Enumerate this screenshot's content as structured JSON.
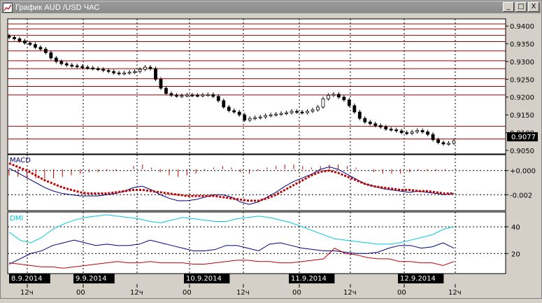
{
  "window": {
    "title": "График AUD /USD  ЧАС",
    "buttons": [
      "_",
      "□",
      "X"
    ]
  },
  "icons": {
    "app": "chart-icon",
    "minimize": "minimize-icon",
    "maximize": "maximize-icon",
    "close": "close-icon"
  },
  "chart_data": [
    {
      "type": "candlestick",
      "y_ticks": [
        "0.9400",
        "0.9350",
        "0.9300",
        "0.9250",
        "0.9200",
        "0.9150",
        "0.9100",
        "0.9050"
      ],
      "ylim": [
        0.904,
        0.942
      ],
      "current_price": "0.9077",
      "horizontal_levels": [
        0.9406,
        0.9392,
        0.9374,
        0.9356,
        0.933,
        0.9302,
        0.928,
        0.9252,
        0.923,
        0.9206,
        0.9118,
        0.9082
      ],
      "close_series": [
        0.9368,
        0.9364,
        0.9358,
        0.9352,
        0.9348,
        0.934,
        0.9335,
        0.9325,
        0.931,
        0.93,
        0.9294,
        0.929,
        0.9288,
        0.9286,
        0.9284,
        0.9282,
        0.928,
        0.9278,
        0.9275,
        0.9272,
        0.9268,
        0.9266,
        0.9268,
        0.927,
        0.9272,
        0.9278,
        0.9284,
        0.928,
        0.925,
        0.9225,
        0.921,
        0.9205,
        0.9203,
        0.9204,
        0.9206,
        0.9205,
        0.9204,
        0.9206,
        0.9207,
        0.9202,
        0.919,
        0.9172,
        0.9162,
        0.9158,
        0.915,
        0.9135,
        0.914,
        0.9142,
        0.9144,
        0.9148,
        0.915,
        0.9152,
        0.9154,
        0.9156,
        0.916,
        0.9158,
        0.9156,
        0.916,
        0.9164,
        0.9172,
        0.9195,
        0.9205,
        0.9208,
        0.92,
        0.9192,
        0.9176,
        0.9158,
        0.914,
        0.913,
        0.9125,
        0.912,
        0.9116,
        0.911,
        0.9108,
        0.9105,
        0.91,
        0.9098,
        0.9102,
        0.9106,
        0.9102,
        0.9095,
        0.908,
        0.9072,
        0.9068,
        0.907,
        0.9077
      ]
    },
    {
      "type": "line",
      "label": "MACD",
      "y_ticks": [
        "+0.000",
        "-0.002"
      ],
      "ylim": [
        -0.0032,
        0.0012
      ],
      "macd": [
        0.0002,
        -0.0002,
        -0.0006,
        -0.001,
        -0.0014,
        -0.0017,
        -0.0019,
        -0.002,
        -0.0021,
        -0.0021,
        -0.0021,
        -0.002,
        -0.0019,
        -0.0017,
        -0.0014,
        -0.0013,
        -0.0016,
        -0.002,
        -0.0023,
        -0.0025,
        -0.0025,
        -0.0024,
        -0.0022,
        -0.002,
        -0.002,
        -0.0022,
        -0.0026,
        -0.0028,
        -0.0026,
        -0.0022,
        -0.0018,
        -0.0013,
        -0.0009,
        -0.0006,
        -0.0003,
        0.0001,
        0.0003,
        0.0001,
        -0.0003,
        -0.0007,
        -0.0011,
        -0.0013,
        -0.0015,
        -0.0016,
        -0.0017,
        -0.0018,
        -0.0017,
        -0.0018,
        -0.0019,
        -0.002,
        -0.0019
      ],
      "signal": [
        0.0006,
        0.0003,
        0.0,
        -0.0004,
        -0.0008,
        -0.0011,
        -0.0014,
        -0.0016,
        -0.0018,
        -0.0019,
        -0.0019,
        -0.0019,
        -0.0018,
        -0.0017,
        -0.0016,
        -0.0016,
        -0.0017,
        -0.0018,
        -0.0019,
        -0.002,
        -0.0021,
        -0.0021,
        -0.0021,
        -0.0021,
        -0.0022,
        -0.0023,
        -0.0024,
        -0.0025,
        -0.0025,
        -0.0023,
        -0.002,
        -0.0016,
        -0.0012,
        -0.0008,
        -0.0004,
        -0.0001,
        0.0,
        -0.0002,
        -0.0005,
        -0.0008,
        -0.0011,
        -0.0013,
        -0.0014,
        -0.0015,
        -0.0016,
        -0.0016,
        -0.0017,
        -0.0017,
        -0.0018,
        -0.0019,
        -0.0019
      ],
      "histogram": [
        -0.0004,
        -0.0005,
        -0.0006,
        -0.0006,
        -0.0006,
        -0.0006,
        -0.0005,
        -0.0004,
        -0.0003,
        -0.0002,
        -0.0002,
        -0.0001,
        -0.0001,
        0.0,
        0.0002,
        0.0003,
        0.0001,
        -0.0002,
        -0.0004,
        -0.0005,
        -0.0004,
        -0.0003,
        -0.0001,
        0.0001,
        0.0002,
        0.0001,
        -0.0002,
        -0.0003,
        -0.0001,
        0.0001,
        0.0002,
        0.0003,
        0.0003,
        0.0002,
        0.0001,
        0.0002,
        0.0003,
        0.0003,
        0.0002,
        0.0001,
        0.0,
        -0.0002,
        -0.0003,
        -0.0003,
        -0.0003,
        -0.0002,
        -0.0001,
        -0.0001,
        -0.0001,
        -0.0001,
        0.0
      ]
    },
    {
      "type": "line",
      "label": "DMI",
      "y_ticks": [
        "40",
        "20"
      ],
      "ylim": [
        6,
        50
      ],
      "adx": [
        36,
        30,
        28,
        32,
        38,
        42,
        45,
        47,
        48,
        49,
        48,
        47,
        46,
        44,
        43,
        45,
        47,
        46,
        45,
        44,
        44,
        46,
        47,
        48,
        47,
        45,
        43,
        40,
        37,
        34,
        31,
        30,
        29,
        28,
        27,
        27,
        28,
        30,
        32,
        34,
        38,
        40
      ],
      "plus_di": [
        12,
        16,
        20,
        22,
        26,
        28,
        30,
        28,
        26,
        27,
        26,
        26,
        27,
        30,
        28,
        26,
        24,
        22,
        22,
        23,
        26,
        26,
        24,
        22,
        27,
        28,
        26,
        24,
        23,
        22,
        22,
        21,
        20,
        20,
        21,
        24,
        26,
        26,
        24,
        25,
        28,
        24
      ],
      "minus_di": [
        13,
        12,
        11,
        10,
        10,
        9,
        10,
        11,
        12,
        13,
        14,
        13,
        13,
        14,
        13,
        13,
        13,
        12,
        12,
        13,
        14,
        15,
        15,
        14,
        14,
        13,
        13,
        14,
        15,
        16,
        24,
        20,
        19,
        17,
        16,
        16,
        14,
        14,
        13,
        13,
        11,
        14
      ]
    }
  ],
  "x_axis": {
    "dates": [
      {
        "label": "8.9.2014",
        "idx": 0
      },
      {
        "label": "9.9.2014",
        "idx": 1
      },
      {
        "label": "10.9.2014",
        "idx": 2
      },
      {
        "label": "11.9.2014",
        "idx": 3
      },
      {
        "label": "12.9.2014",
        "idx": 4
      }
    ],
    "hours": [
      "12ч",
      "00",
      "12ч",
      "00",
      "12ч",
      "00",
      "12ч",
      "00",
      "12ч"
    ]
  },
  "colors": {
    "background": "#ffffff",
    "grid": "#000000",
    "levels": "#a00000",
    "macd_line": "#000080",
    "signal": "#c00000",
    "adx": "#00c8e0",
    "plus_di": "#000080",
    "minus_di": "#c00000"
  }
}
